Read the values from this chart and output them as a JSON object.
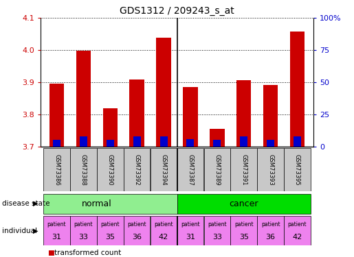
{
  "title": "GDS1312 / 209243_s_at",
  "samples": [
    "GSM73386",
    "GSM73388",
    "GSM73390",
    "GSM73392",
    "GSM73394",
    "GSM73387",
    "GSM73389",
    "GSM73391",
    "GSM73393",
    "GSM73395"
  ],
  "transformed_counts": [
    3.895,
    3.998,
    3.818,
    3.908,
    4.038,
    3.886,
    3.755,
    3.906,
    3.891,
    4.058
  ],
  "percentile_ranks": [
    5,
    8,
    5,
    8,
    8,
    6,
    5,
    8,
    5,
    8
  ],
  "ylim_left": [
    3.7,
    4.1
  ],
  "ylim_right": [
    0,
    100
  ],
  "yticks_left": [
    3.7,
    3.8,
    3.9,
    4.0,
    4.1
  ],
  "yticks_right": [
    0,
    25,
    50,
    75,
    100
  ],
  "ytick_labels_right": [
    "0",
    "25",
    "50",
    "75",
    "100%"
  ],
  "individuals": [
    "31",
    "33",
    "35",
    "36",
    "42",
    "31",
    "33",
    "35",
    "36",
    "42"
  ],
  "normal_color": "#90ee90",
  "cancer_color": "#00dd00",
  "individual_color": "#ee82ee",
  "bar_color_red": "#cc0000",
  "bar_color_blue": "#0000cc",
  "bar_width": 0.55,
  "blue_bar_width": 0.28,
  "baseline": 3.7,
  "separator_after": 5,
  "tick_label_color_left": "#cc0000",
  "tick_label_color_right": "#0000cc",
  "background_color": "#ffffff",
  "grid_color": "#000000",
  "sample_box_color": "#c8c8c8"
}
